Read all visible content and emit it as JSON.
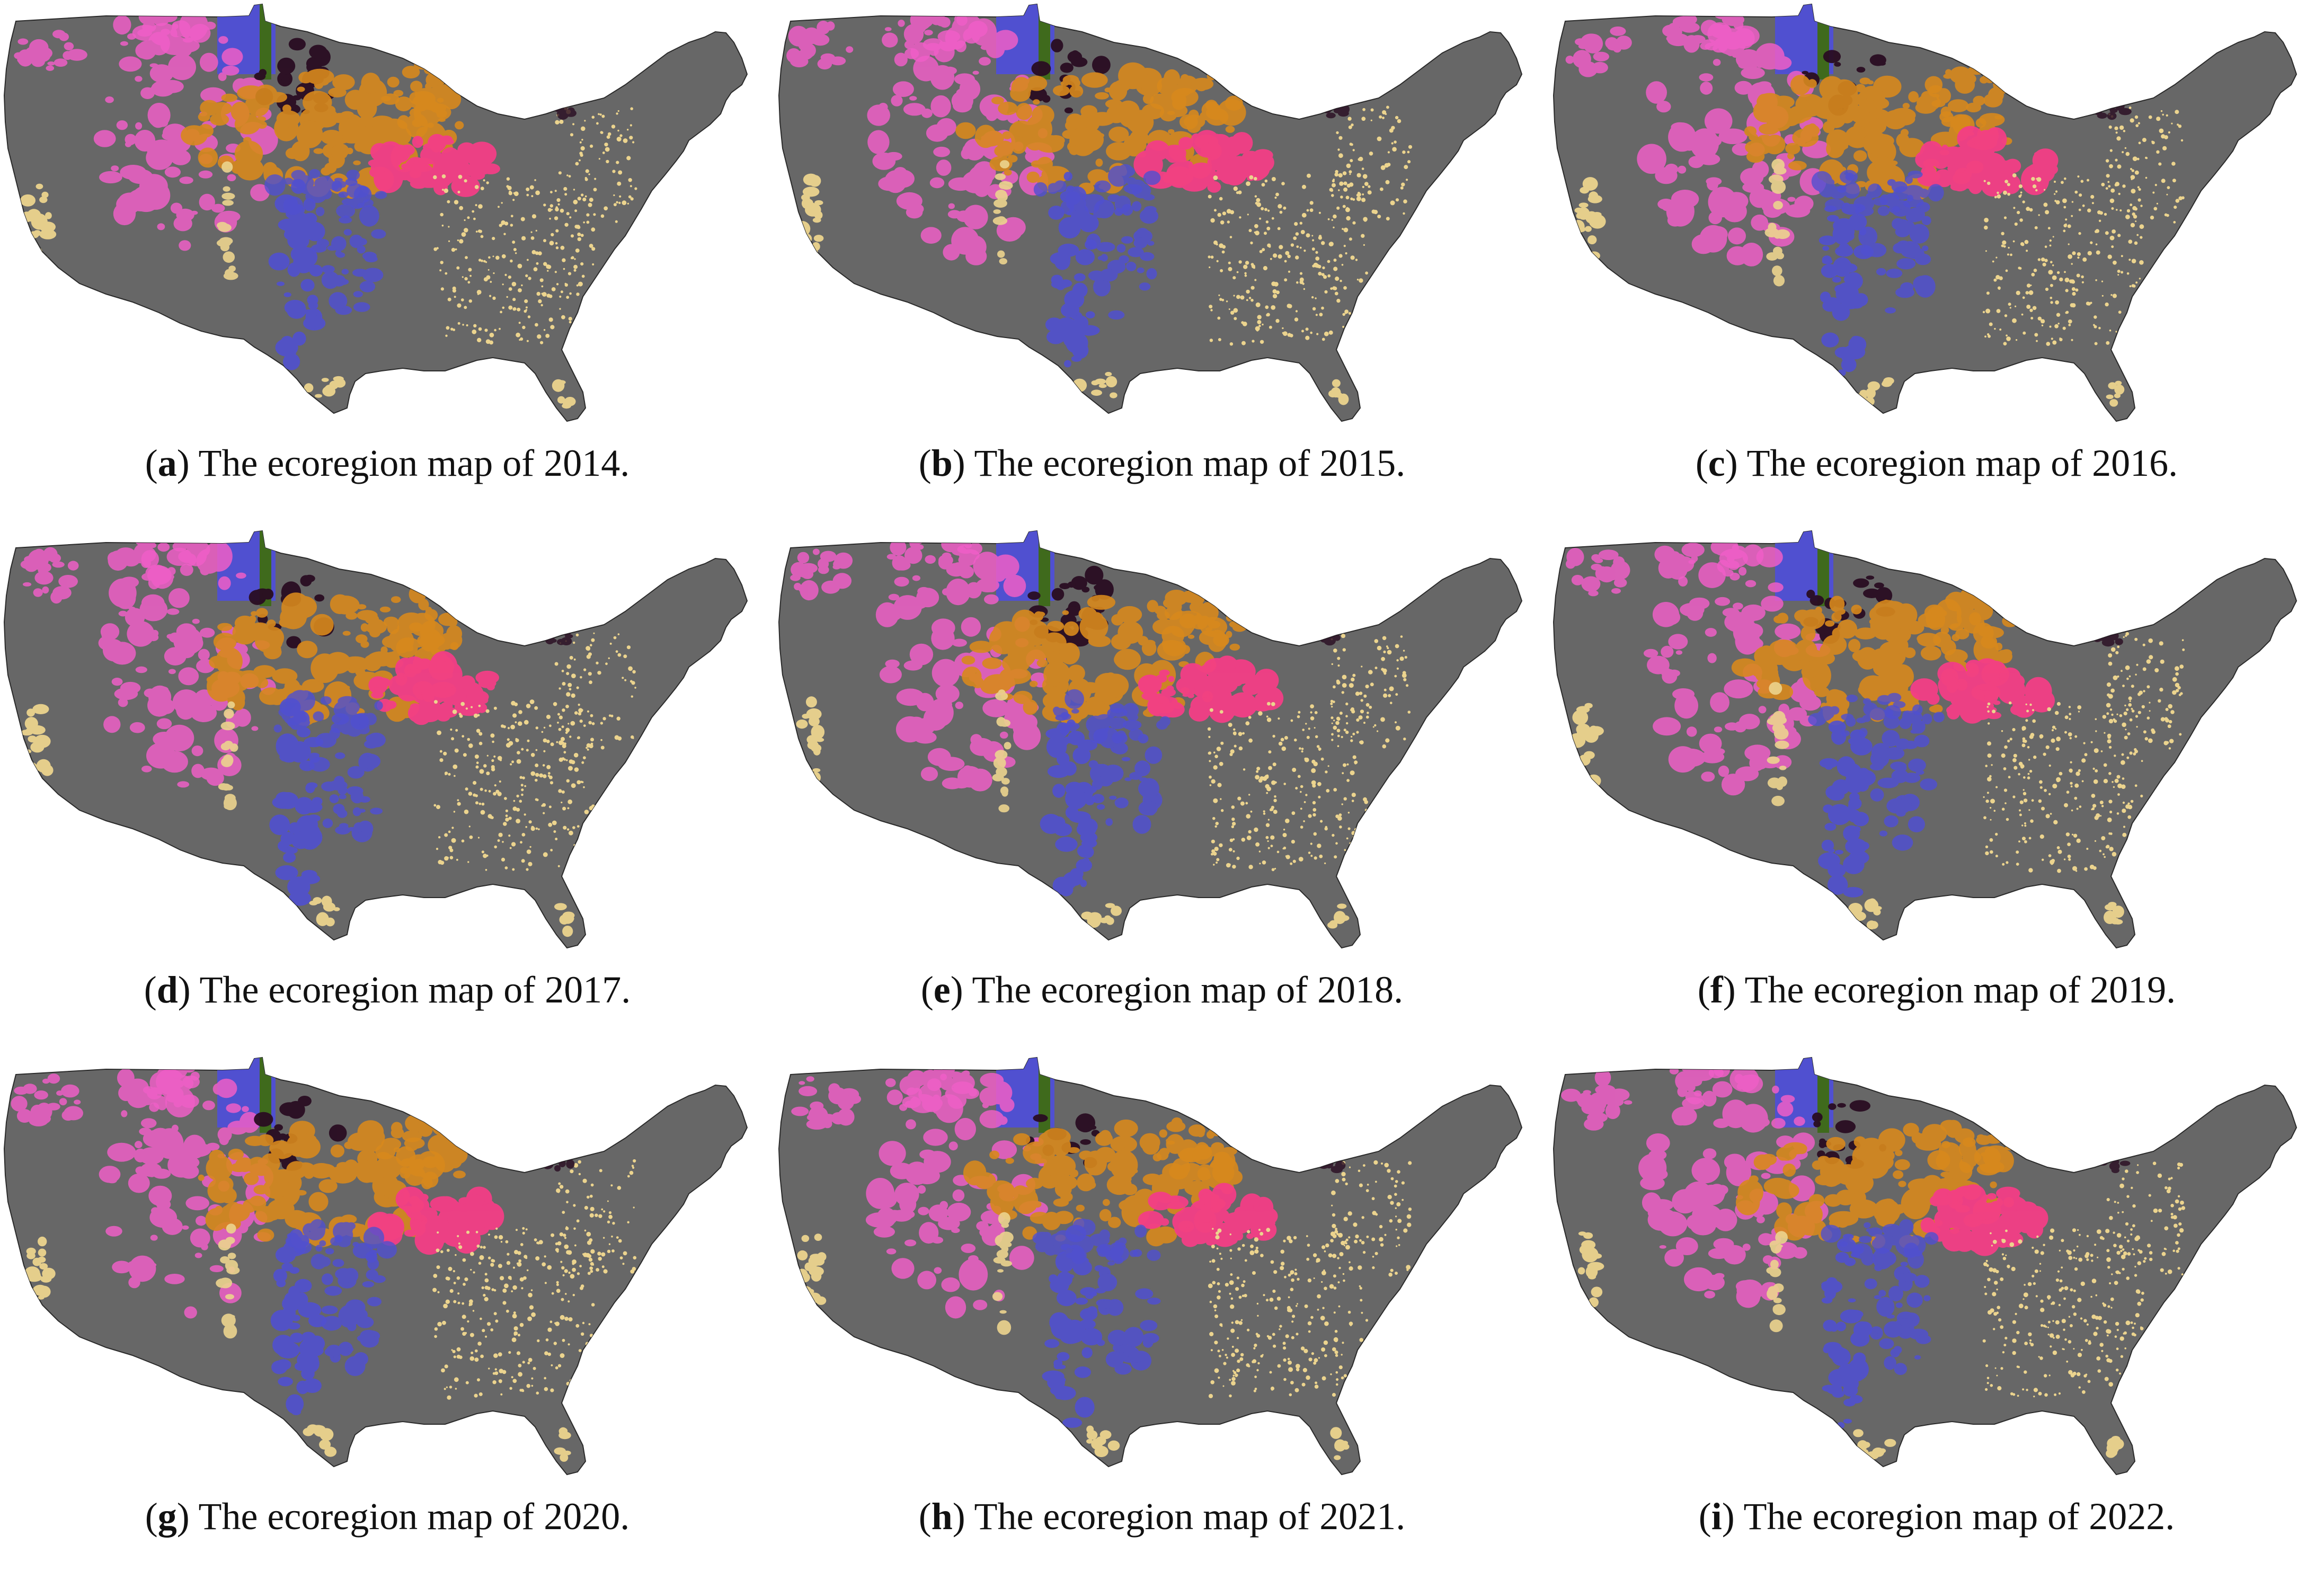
{
  "colors": {
    "land": "#676767",
    "outline": "#2a2a2a",
    "pink": "#ef5fc7",
    "hotpink": "#f43e86",
    "orange": "#d8891d",
    "blue": "#5050d0",
    "darkgreen": "#3f6a1c",
    "black": "#2a0d22",
    "cream": "#ecd48e"
  },
  "panels": [
    {
      "letter": "a",
      "text": "The ecoregion map of 2014.",
      "variant": 0
    },
    {
      "letter": "b",
      "text": "The ecoregion map of 2015.",
      "variant": 1
    },
    {
      "letter": "c",
      "text": "The ecoregion map of 2016.",
      "variant": 2
    },
    {
      "letter": "d",
      "text": "The ecoregion map of 2017.",
      "variant": 3
    },
    {
      "letter": "e",
      "text": "The ecoregion map of 2018.",
      "variant": 4
    },
    {
      "letter": "f",
      "text": "The ecoregion map of 2019.",
      "variant": 5
    },
    {
      "letter": "g",
      "text": "The ecoregion map of 2020.",
      "variant": 6
    },
    {
      "letter": "h",
      "text": "The ecoregion map of 2021.",
      "variant": 7
    },
    {
      "letter": "i",
      "text": "The ecoregion map of 2022.",
      "variant": 8
    }
  ]
}
